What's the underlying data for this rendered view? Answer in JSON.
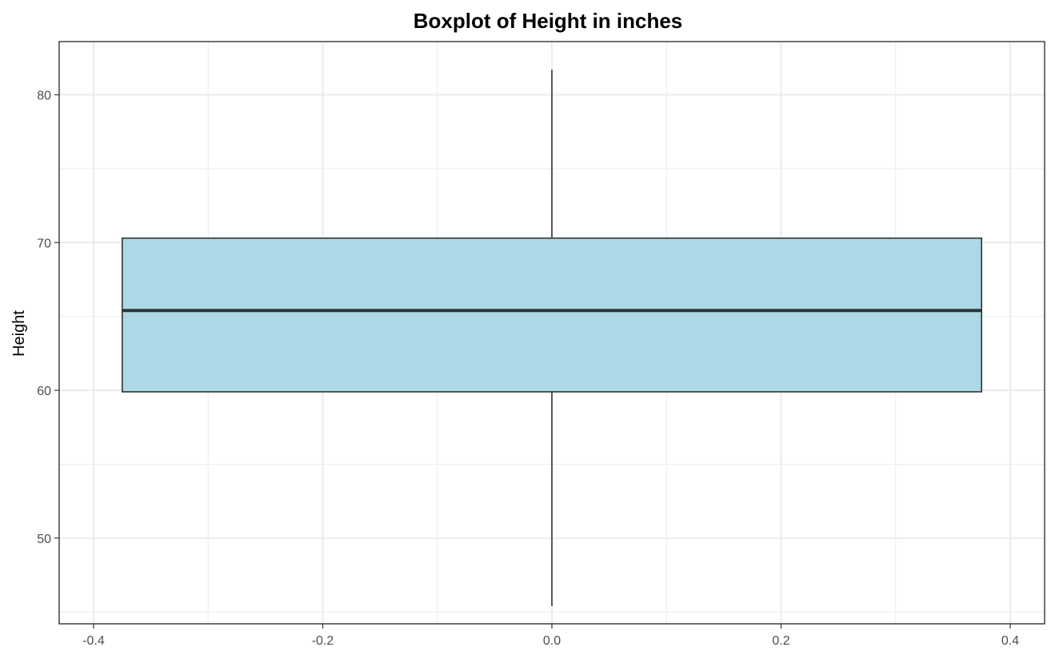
{
  "chart_data": {
    "type": "boxplot",
    "title": "Boxplot of Height in inches",
    "xlabel": "",
    "ylabel": "Height",
    "xlim": [
      -0.43,
      0.43
    ],
    "ylim": [
      44.2,
      83.6
    ],
    "x_ticks": [
      -0.4,
      -0.2,
      0.0,
      0.2,
      0.4
    ],
    "x_tick_labels": [
      "-0.4",
      "-0.2",
      "0.0",
      "0.2",
      "0.4"
    ],
    "y_ticks": [
      50,
      60,
      70,
      80
    ],
    "y_tick_labels": [
      "50",
      "60",
      "70",
      "80"
    ],
    "grid": true,
    "box": {
      "x_center": 0.0,
      "x_left": -0.375,
      "x_right": 0.375,
      "whisker_low": 45.4,
      "q1": 59.9,
      "median": 65.4,
      "q3": 70.3,
      "whisker_high": 81.7
    },
    "colors": {
      "box_fill": "#add8e6",
      "box_stroke": "#333333",
      "median": "#333333",
      "whisker": "#333333",
      "grid": "#ebebeb",
      "panel_border": "#333333",
      "tick_text": "#4d4d4d"
    }
  }
}
